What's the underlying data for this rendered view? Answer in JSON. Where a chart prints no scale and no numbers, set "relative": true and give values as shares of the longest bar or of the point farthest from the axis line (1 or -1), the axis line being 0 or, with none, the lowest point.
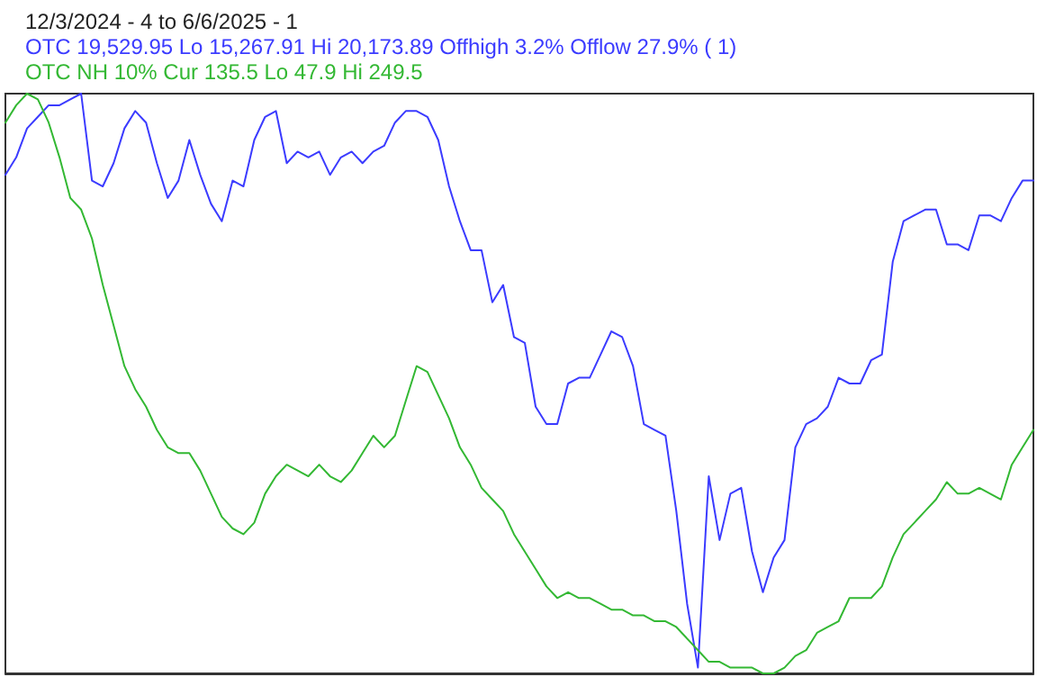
{
  "chart_data": {
    "type": "line",
    "relative": true,
    "grid": false,
    "line_style": "solid",
    "tick_labels": false,
    "annotations": [
      "12/3/2024 - 4 to 6/6/2025 - 1",
      "OTC 19,529.95 Lo 15,267.91 Hi 20,173.89 Offhigh 3.2% Offlow 27.9% ( 1)",
      "OTC NH 10% Cur 135.5 Lo 47.9 Hi 249.5"
    ],
    "categories": [
      null,
      null,
      null,
      null,
      null,
      null,
      null,
      null,
      null,
      null,
      null,
      null,
      null,
      null,
      null,
      null,
      null,
      null,
      null,
      null,
      null,
      null,
      null,
      null,
      null,
      null,
      null,
      null,
      null,
      null,
      null,
      null,
      null,
      null,
      null,
      null,
      null,
      null,
      null,
      null,
      null,
      null,
      null,
      null,
      null,
      null,
      null,
      null,
      null,
      null,
      null,
      null,
      null,
      null,
      null,
      null,
      null,
      null,
      null,
      null,
      null,
      null,
      null,
      null,
      null,
      null,
      null,
      null,
      null,
      null,
      null,
      null,
      null,
      null,
      null,
      null,
      null,
      null,
      null,
      null,
      null,
      null,
      null,
      null,
      null,
      null,
      null,
      null,
      null,
      null,
      null,
      null,
      null,
      null,
      null,
      null
    ],
    "series": [
      {
        "color": "#3b3bff",
        "values": [
          0.86,
          0.89,
          0.94,
          0.96,
          0.98,
          0.98,
          0.99,
          1,
          0.85,
          0.84,
          0.88,
          0.94,
          0.97,
          0.95,
          0.88,
          0.82,
          0.85,
          0.92,
          0.86,
          0.81,
          0.78,
          0.85,
          0.84,
          0.92,
          0.96,
          0.97,
          0.88,
          0.9,
          0.89,
          0.9,
          0.86,
          0.89,
          0.9,
          0.88,
          0.9,
          0.91,
          0.95,
          0.97,
          0.97,
          0.96,
          0.92,
          0.84,
          0.78,
          0.73,
          0.73,
          0.64,
          0.67,
          0.58,
          0.57,
          0.46,
          0.43,
          0.43,
          0.5,
          0.51,
          0.51,
          0.55,
          0.59,
          0.58,
          0.53,
          0.43,
          0.42,
          0.41,
          0.28,
          0.12,
          0.01,
          0.34,
          0.23,
          0.31,
          0.32,
          0.21,
          0.14,
          0.2,
          0.23,
          0.39,
          0.43,
          0.44,
          0.46,
          0.51,
          0.5,
          0.5,
          0.54,
          0.55,
          0.71,
          0.78,
          0.79,
          0.8,
          0.8,
          0.74,
          0.74,
          0.73,
          0.79,
          0.79,
          0.78,
          0.82,
          0.85,
          0.85
        ]
      },
      {
        "color": "#33b833",
        "values": [
          0.95,
          0.98,
          1,
          0.99,
          0.95,
          0.89,
          0.82,
          0.8,
          0.75,
          0.67,
          0.6,
          0.53,
          0.49,
          0.46,
          0.42,
          0.39,
          0.38,
          0.38,
          0.35,
          0.31,
          0.27,
          0.25,
          0.24,
          0.26,
          0.31,
          0.34,
          0.36,
          0.35,
          0.34,
          0.36,
          0.34,
          0.33,
          0.35,
          0.38,
          0.41,
          0.39,
          0.41,
          0.47,
          0.53,
          0.52,
          0.48,
          0.44,
          0.39,
          0.36,
          0.32,
          0.3,
          0.28,
          0.24,
          0.21,
          0.18,
          0.15,
          0.13,
          0.14,
          0.13,
          0.13,
          0.12,
          0.11,
          0.11,
          0.1,
          0.1,
          0.09,
          0.09,
          0.08,
          0.06,
          0.04,
          0.02,
          0.02,
          0.01,
          0.01,
          0.01,
          0,
          0,
          0.01,
          0.03,
          0.04,
          0.07,
          0.08,
          0.09,
          0.13,
          0.13,
          0.13,
          0.15,
          0.2,
          0.24,
          0.26,
          0.28,
          0.3,
          0.33,
          0.31,
          0.31,
          0.32,
          0.31,
          0.3,
          0.36,
          0.39,
          0.42
        ]
      }
    ]
  }
}
